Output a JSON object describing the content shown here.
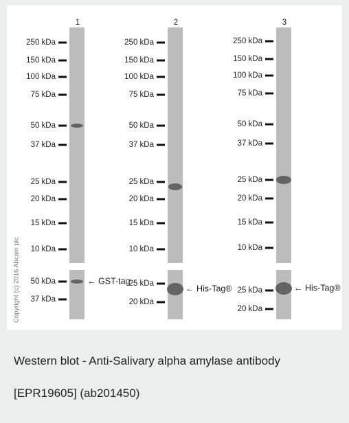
{
  "figure": {
    "copyright": "Copyright (c) 2016 Abcam plc",
    "lanes": [
      {
        "label": "1",
        "markers": [
          "250 kDa",
          "150 kDa",
          "100 kDa",
          "75 kDa",
          "50 kDa",
          "37 kDa",
          "25 kDa",
          "20 kDa",
          "15 kDa",
          "10 kDa"
        ],
        "tag_markers": [
          "50 kDa",
          "37 kDa"
        ],
        "tag_annotation": "← GST-tag"
      },
      {
        "label": "2",
        "markers": [
          "250 kDa",
          "150 kDa",
          "100 kDa",
          "75 kDa",
          "50 kDa",
          "37 kDa",
          "25 kDa",
          "20 kDa",
          "15 kDa",
          "10 kDa"
        ],
        "tag_markers": [
          "25 kDa",
          "20 kDa"
        ],
        "tag_annotation": "← His-Tag®"
      },
      {
        "label": "3",
        "markers": [
          "250 kDa",
          "150 kDa",
          "100 kDa",
          "75 kDa",
          "50 kDa",
          "37 kDa",
          "25 kDa",
          "20 kDa",
          "15 kDa",
          "10 kDa"
        ],
        "tag_markers": [
          "25 kDa",
          "20 kDa"
        ],
        "tag_annotation": "← His-Tag®"
      }
    ]
  },
  "caption": {
    "lines": [
      "Western blot - Anti-Salivary alpha amylase antibody",
      "[EPR19605] (ab201450)"
    ]
  }
}
